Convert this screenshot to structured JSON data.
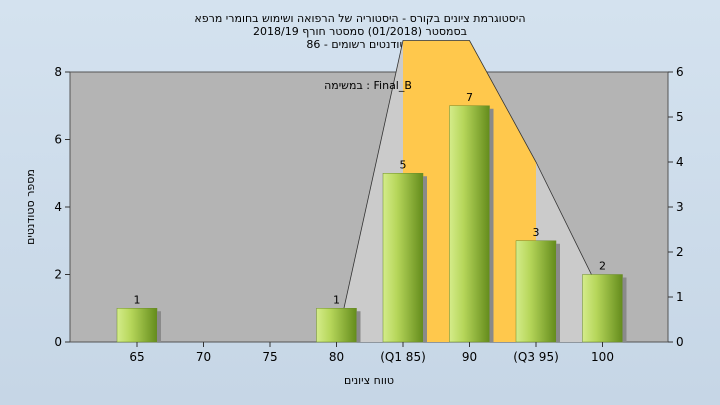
{
  "title_lines": [
    "היסטוגרמת ציונים בקורס - היסטוריה של הרפואה ושימוש בחומרי מרפא",
    "בסמסטר  (01/2018)  סמסטר חורף 2018/19",
    "סטודנטים רשומים - 86"
  ],
  "annotation": "במשימה : Final_B",
  "chart_data": {
    "type": "bar",
    "categories": [
      "65",
      "70",
      "75",
      "80",
      "(Q1 85)",
      "90",
      "(Q3 95)",
      "100"
    ],
    "values": [
      1,
      0,
      0,
      1,
      5,
      7,
      3,
      2
    ],
    "data_labels": [
      "1",
      "",
      "",
      "1",
      "5",
      "7",
      "3",
      "2"
    ],
    "xlabel": "טווח ציונים",
    "ylabel": "מספר סטודנטים",
    "ylim": [
      0,
      8
    ],
    "y2lim": [
      0,
      6
    ],
    "yticks": [
      0,
      2,
      4,
      6,
      8
    ],
    "y2ticks": [
      0,
      1,
      2,
      3,
      4,
      5,
      6
    ],
    "grid": false,
    "overlay_polygon": {
      "x_index": [
        3,
        4,
        5,
        6,
        7
      ],
      "values": [
        0,
        6.7,
        6.7,
        4,
        1
      ]
    },
    "highlight_area": {
      "from_index": 4,
      "to_index": 6
    },
    "colors": {
      "plot_bg": "#b4b4b4",
      "bar_light": "#d4ec8a",
      "bar_dark": "#648c1c",
      "highlight": "#ffc84c",
      "overlay": "#cbcbcb"
    }
  }
}
